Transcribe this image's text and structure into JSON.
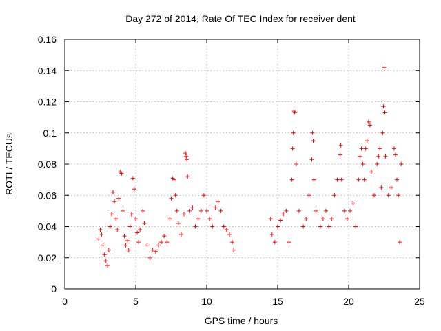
{
  "chart_data": {
    "type": "scatter",
    "title": "Day 272 of 2014, Rate Of TEC Index for receiver dent",
    "xlabel": "GPS time / hours",
    "ylabel": "ROTI / TECUs",
    "xlim": [
      0,
      25
    ],
    "ylim": [
      0,
      0.16
    ],
    "x_ticks": [
      0,
      5,
      10,
      15,
      20,
      25
    ],
    "x_tick_labels": [
      "0",
      "5",
      "10",
      "15",
      "20",
      "25"
    ],
    "y_ticks": [
      0,
      0.02,
      0.04,
      0.06,
      0.08,
      0.1,
      0.12,
      0.14,
      0.16
    ],
    "y_tick_labels": [
      "0",
      "0.02",
      "0.04",
      "0.06",
      "0.08",
      "0.1",
      "0.12",
      "0.14",
      "0.16"
    ],
    "grid": true,
    "marker": "+",
    "color": "#ff0000",
    "series": [
      {
        "points": [
          [
            2.4,
            0.032
          ],
          [
            2.5,
            0.038
          ],
          [
            2.6,
            0.035
          ],
          [
            2.7,
            0.028
          ],
          [
            2.8,
            0.022
          ],
          [
            2.9,
            0.018
          ],
          [
            3.0,
            0.015
          ],
          [
            3.1,
            0.025
          ],
          [
            3.2,
            0.04
          ],
          [
            3.3,
            0.048
          ],
          [
            3.4,
            0.062
          ],
          [
            3.5,
            0.056
          ],
          [
            3.6,
            0.045
          ],
          [
            3.7,
            0.038
          ],
          [
            3.8,
            0.058
          ],
          [
            3.9,
            0.075
          ],
          [
            4.0,
            0.074
          ],
          [
            4.1,
            0.05
          ],
          [
            4.2,
            0.034
          ],
          [
            4.3,
            0.028
          ],
          [
            4.4,
            0.031
          ],
          [
            4.5,
            0.025
          ],
          [
            4.6,
            0.04
          ],
          [
            4.7,
            0.048
          ],
          [
            4.8,
            0.071
          ],
          [
            4.9,
            0.064
          ],
          [
            5.0,
            0.045
          ],
          [
            5.1,
            0.036
          ],
          [
            5.2,
            0.03
          ],
          [
            5.3,
            0.038
          ],
          [
            5.5,
            0.05
          ],
          [
            5.6,
            0.042
          ],
          [
            5.8,
            0.028
          ],
          [
            6.0,
            0.02
          ],
          [
            6.2,
            0.025
          ],
          [
            6.4,
            0.024
          ],
          [
            6.6,
            0.028
          ],
          [
            6.8,
            0.03
          ],
          [
            7.0,
            0.034
          ],
          [
            7.2,
            0.03
          ],
          [
            7.4,
            0.045
          ],
          [
            7.5,
            0.058
          ],
          [
            7.6,
            0.071
          ],
          [
            7.7,
            0.07
          ],
          [
            7.8,
            0.06
          ],
          [
            7.9,
            0.05
          ],
          [
            8.0,
            0.042
          ],
          [
            8.2,
            0.035
          ],
          [
            8.4,
            0.048
          ],
          [
            8.5,
            0.087
          ],
          [
            8.55,
            0.085
          ],
          [
            8.6,
            0.083
          ],
          [
            8.65,
            0.072
          ],
          [
            8.8,
            0.05
          ],
          [
            9.0,
            0.052
          ],
          [
            9.2,
            0.04
          ],
          [
            9.4,
            0.045
          ],
          [
            9.6,
            0.05
          ],
          [
            9.8,
            0.06
          ],
          [
            10.0,
            0.05
          ],
          [
            10.2,
            0.045
          ],
          [
            10.4,
            0.04
          ],
          [
            10.6,
            0.052
          ],
          [
            10.8,
            0.056
          ],
          [
            11.0,
            0.05
          ],
          [
            11.2,
            0.04
          ],
          [
            11.4,
            0.038
          ],
          [
            11.6,
            0.035
          ],
          [
            11.8,
            0.03
          ],
          [
            11.9,
            0.025
          ],
          [
            14.5,
            0.045
          ],
          [
            14.6,
            0.035
          ],
          [
            14.8,
            0.03
          ],
          [
            15.0,
            0.04
          ],
          [
            15.2,
            0.044
          ],
          [
            15.4,
            0.048
          ],
          [
            15.6,
            0.05
          ],
          [
            15.8,
            0.03
          ],
          [
            16.0,
            0.07
          ],
          [
            16.05,
            0.09
          ],
          [
            16.1,
            0.1
          ],
          [
            16.15,
            0.114
          ],
          [
            16.2,
            0.113
          ],
          [
            16.3,
            0.08
          ],
          [
            16.5,
            0.05
          ],
          [
            16.8,
            0.04
          ],
          [
            17.0,
            0.045
          ],
          [
            17.2,
            0.06
          ],
          [
            17.4,
            0.083
          ],
          [
            17.45,
            0.1
          ],
          [
            17.5,
            0.095
          ],
          [
            17.55,
            0.07
          ],
          [
            17.7,
            0.05
          ],
          [
            18.0,
            0.04
          ],
          [
            18.2,
            0.045
          ],
          [
            18.4,
            0.05
          ],
          [
            18.6,
            0.04
          ],
          [
            18.8,
            0.045
          ],
          [
            19.0,
            0.06
          ],
          [
            19.2,
            0.07
          ],
          [
            19.4,
            0.086
          ],
          [
            19.45,
            0.092
          ],
          [
            19.5,
            0.07
          ],
          [
            19.7,
            0.05
          ],
          [
            19.9,
            0.045
          ],
          [
            20.1,
            0.05
          ],
          [
            20.3,
            0.055
          ],
          [
            20.5,
            0.04
          ],
          [
            20.7,
            0.07
          ],
          [
            20.8,
            0.085
          ],
          [
            20.9,
            0.09
          ],
          [
            21.0,
            0.08
          ],
          [
            21.1,
            0.07
          ],
          [
            21.2,
            0.09
          ],
          [
            21.3,
            0.095
          ],
          [
            21.4,
            0.107
          ],
          [
            21.5,
            0.105
          ],
          [
            21.6,
            0.075
          ],
          [
            21.8,
            0.06
          ],
          [
            22.0,
            0.08
          ],
          [
            22.1,
            0.085
          ],
          [
            22.2,
            0.09
          ],
          [
            22.3,
            0.065
          ],
          [
            22.4,
            0.1
          ],
          [
            22.45,
            0.117
          ],
          [
            22.5,
            0.142
          ],
          [
            22.55,
            0.113
          ],
          [
            22.6,
            0.085
          ],
          [
            22.8,
            0.06
          ],
          [
            23.0,
            0.065
          ],
          [
            23.2,
            0.09
          ],
          [
            23.3,
            0.086
          ],
          [
            23.4,
            0.07
          ],
          [
            23.5,
            0.06
          ],
          [
            23.6,
            0.03
          ],
          [
            23.7,
            0.08
          ]
        ]
      }
    ]
  }
}
